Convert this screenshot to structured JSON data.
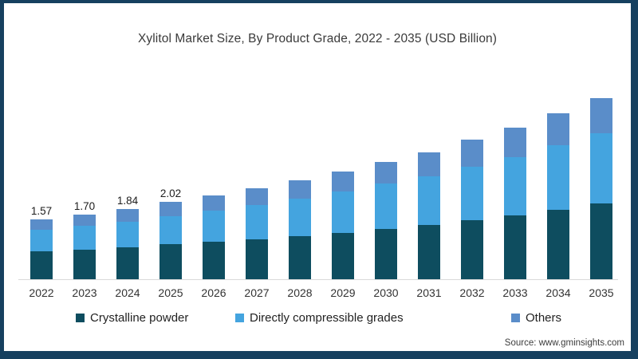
{
  "title": "Xylitol Market Size, By Product Grade, 2022 - 2035 (USD Billion)",
  "source_note": "Source: www.gminsights.com",
  "colors": {
    "frame_border": "#16405f",
    "axis_line": "#d9d9d9",
    "crystalline_powder": "#0e4d5f",
    "directly_compressible": "#44a4df",
    "others": "#5a8dc9"
  },
  "chart_data": {
    "type": "bar",
    "stacked": true,
    "title": "Xylitol Market Size, By Product Grade, 2022 - 2035 (USD Billion)",
    "units": "USD Billion",
    "xlabel": "",
    "ylabel": "",
    "grid": false,
    "legend_position": "bottom",
    "categories": [
      "2022",
      "2023",
      "2024",
      "2025",
      "2026",
      "2027",
      "2028",
      "2029",
      "2030",
      "2031",
      "2032",
      "2033",
      "2034",
      "2035"
    ],
    "series": [
      {
        "name": "Crystalline powder",
        "color": "#0e4d5f",
        "values": [
          0.72,
          0.78,
          0.84,
          0.91,
          0.97,
          1.04,
          1.12,
          1.21,
          1.31,
          1.42,
          1.54,
          1.67,
          1.81,
          1.97
        ]
      },
      {
        "name": "Directly compressible grades",
        "color": "#44a4df",
        "values": [
          0.57,
          0.62,
          0.66,
          0.73,
          0.81,
          0.89,
          0.98,
          1.08,
          1.18,
          1.28,
          1.4,
          1.53,
          1.68,
          1.83
        ]
      },
      {
        "name": "Others",
        "color": "#5a8dc9",
        "values": [
          0.28,
          0.3,
          0.34,
          0.38,
          0.4,
          0.44,
          0.48,
          0.52,
          0.57,
          0.63,
          0.7,
          0.77,
          0.84,
          0.92
        ]
      }
    ],
    "totals": [
      1.57,
      1.7,
      1.84,
      2.02,
      2.18,
      2.37,
      2.58,
      2.81,
      3.06,
      3.33,
      3.64,
      3.97,
      4.33,
      4.72
    ],
    "bar_value_labels": [
      "1.57",
      "1.70",
      "1.84",
      "2.02",
      "",
      "",
      "",
      "",
      "",
      "",
      "",
      "",
      "",
      ""
    ],
    "ylim": [
      0,
      5
    ]
  }
}
